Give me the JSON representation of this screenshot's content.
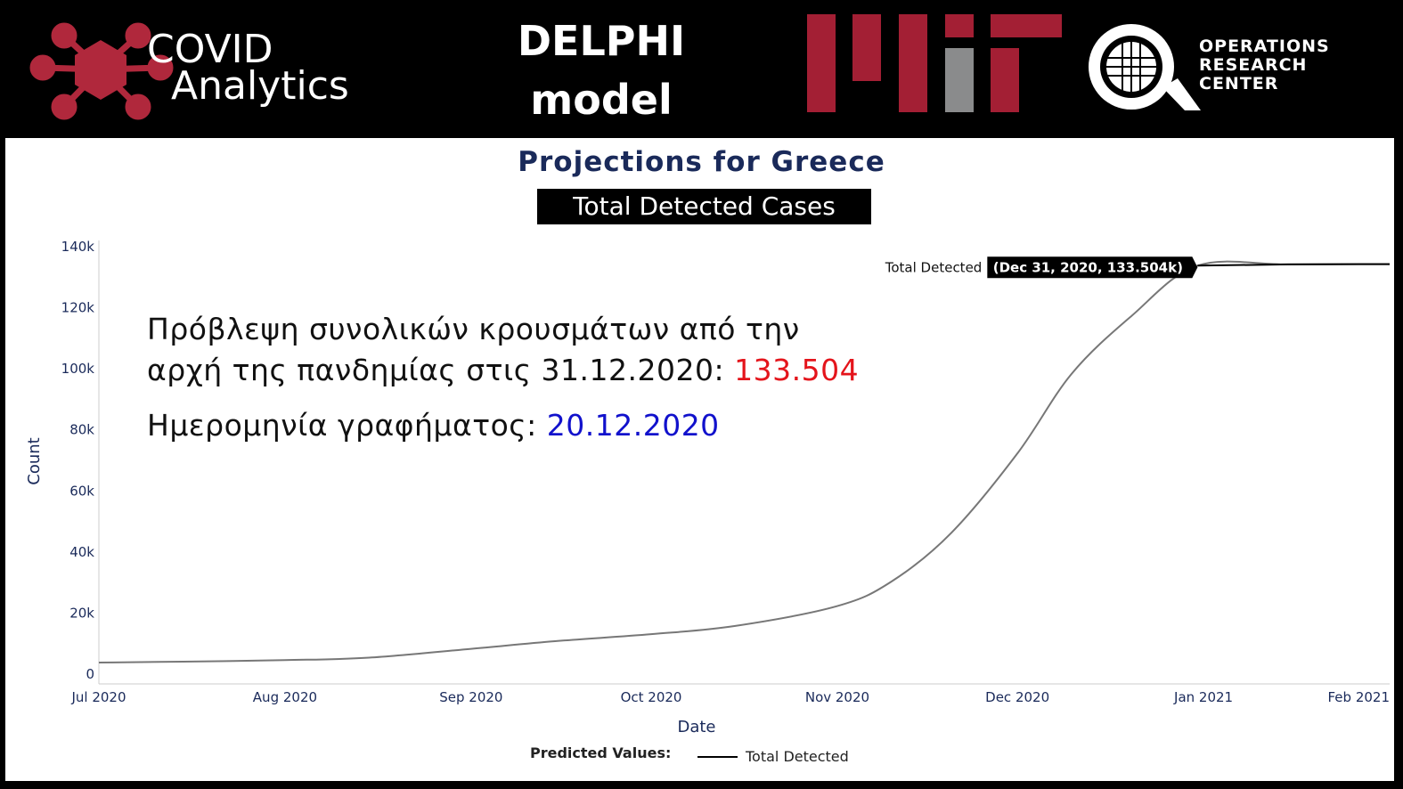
{
  "header": {
    "covid_logo_line1": "COVID",
    "covid_logo_line2": "Analytics",
    "model_line1": "DELPHI",
    "model_line2": "model",
    "orc_line1": "OPERATIONS",
    "orc_line2": "RESEARCH",
    "orc_line3": "CENTER"
  },
  "colors": {
    "covid_red": "#b0283c",
    "mit_red": "#a31f34",
    "mit_gray": "#8a8b8c",
    "title_navy": "#1a2a5a",
    "curve": "#777777",
    "annotation_value_red": "#e4141b",
    "annotation_date_blue": "#1111cc"
  },
  "annotation": {
    "line1": "Πρόβλεψη συνολικών κρουσμάτων από την",
    "line2_prefix": "αρχή της πανδημίας στις 31.12.2020: ",
    "line2_value": "133.504",
    "line3_prefix": "Ημερομηνία γραφήματος: ",
    "line3_value": "20.12.2020"
  },
  "chart_data": {
    "type": "line",
    "title": "Projections for Greece",
    "subtitle": "Total Detected Cases",
    "xlabel": "Date",
    "ylabel": "Count",
    "x_ticks": [
      "Jul 2020",
      "Aug 2020",
      "Sep 2020",
      "Oct 2020",
      "Nov 2020",
      "Dec 2020",
      "Jan 2021",
      "Feb 2021"
    ],
    "y_ticks": [
      "0",
      "20k",
      "40k",
      "60k",
      "80k",
      "100k",
      "120k",
      "140k"
    ],
    "ylim": [
      0,
      140000
    ],
    "xlim": [
      "2020-07-01",
      "2021-02-01"
    ],
    "grid": false,
    "legend": {
      "title": "Predicted Values:",
      "entries": [
        "Total Detected"
      ],
      "placement": "bottom"
    },
    "series": [
      {
        "name": "Total Detected",
        "x": [
          "2020-07-01",
          "2020-07-15",
          "2020-08-01",
          "2020-08-15",
          "2020-09-01",
          "2020-09-15",
          "2020-10-01",
          "2020-10-15",
          "2020-11-01",
          "2020-11-10",
          "2020-11-20",
          "2020-12-01",
          "2020-12-10",
          "2020-12-20",
          "2020-12-31",
          "2021-01-15",
          "2021-02-01"
        ],
        "y": [
          3500,
          3800,
          4300,
          5100,
          8000,
          10500,
          12800,
          15500,
          22000,
          30000,
          46000,
          72000,
          98000,
          117000,
          133504,
          133900,
          134000
        ]
      }
    ],
    "hover_label": {
      "series": "Total Detected",
      "text": "(Dec 31, 2020, 133.504k)",
      "x": "2020-12-31",
      "y": 133504
    }
  }
}
